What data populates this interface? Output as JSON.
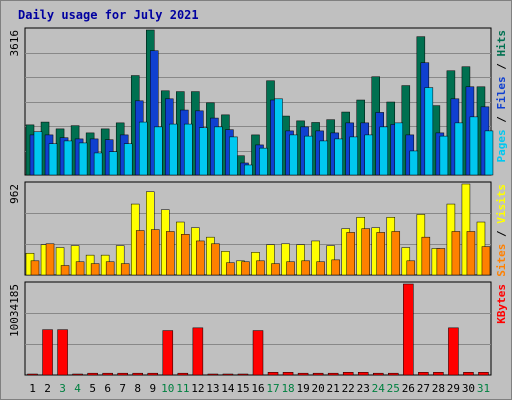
{
  "chart_data": {
    "type": "bar",
    "title": "Daily usage for July 2021",
    "categories": [
      "1",
      "2",
      "3",
      "4",
      "5",
      "6",
      "7",
      "8",
      "9",
      "10",
      "11",
      "12",
      "13",
      "14",
      "15",
      "16",
      "17",
      "18",
      "19",
      "20",
      "21",
      "22",
      "23",
      "24",
      "25",
      "26",
      "27",
      "28",
      "29",
      "30",
      "31"
    ],
    "weekend_days": [
      "3",
      "4",
      "10",
      "11",
      "17",
      "18",
      "24",
      "25",
      "31"
    ],
    "colors": {
      "background": "#c0c0c0",
      "title": "#0000a0",
      "hits": "#007050",
      "files": "#1040d0",
      "pages": "#00c8f0",
      "visits": "#ffff00",
      "sites": "#ff8000",
      "kbytes": "#ff0000",
      "weekday_label": "#000000",
      "weekend_label": "#008040"
    },
    "panels": [
      {
        "name": "hits-files-pages",
        "ytick": "3616",
        "ymax": 3616,
        "legend": [
          {
            "text": "Hits",
            "color": "#007050"
          },
          {
            "text": "Files",
            "color": "#1040d0"
          },
          {
            "text": "Pages",
            "color": "#00c8f0"
          }
        ],
        "series": [
          {
            "name": "Hits",
            "values": [
              1250,
              1320,
              1150,
              1230,
              1050,
              1150,
              1300,
              2480,
              3616,
              2100,
              2080,
              2080,
              1800,
              1500,
              480,
              1000,
              2350,
              1470,
              1350,
              1310,
              1380,
              1570,
              1870,
              2450,
              1820,
              2230,
              3450,
              1730,
              2600,
              2700,
              2200
            ]
          },
          {
            "name": "Files",
            "values": [
              1000,
              1000,
              930,
              900,
              900,
              880,
              1000,
              1850,
              3100,
              1900,
              1620,
              1600,
              1420,
              1130,
              300,
              750,
              1870,
              1100,
              1200,
              1100,
              1050,
              1300,
              1300,
              1560,
              1260,
              1000,
              2800,
              1050,
              1900,
              2200,
              1700
            ]
          },
          {
            "name": "Pages",
            "values": [
              1080,
              780,
              850,
              800,
              550,
              580,
              780,
              1320,
              1200,
              1270,
              1270,
              1180,
              1200,
              950,
              250,
              670,
              1900,
              1000,
              970,
              850,
              900,
              950,
              1000,
              1200,
              1300,
              600,
              2180,
              970,
              1300,
              1450,
              1100
            ]
          }
        ]
      },
      {
        "name": "visits-sites",
        "ytick": "962",
        "ymax": 962,
        "legend": [
          {
            "text": "Visits",
            "color": "#ffff00"
          },
          {
            "text": "Sites",
            "color": "#ff8000"
          }
        ],
        "series": [
          {
            "name": "Visits",
            "values": [
              230,
              320,
              290,
              310,
              210,
              210,
              310,
              750,
              880,
              690,
              560,
              500,
              400,
              250,
              150,
              240,
              320,
              330,
              320,
              360,
              310,
              490,
              610,
              500,
              610,
              290,
              640,
              280,
              750,
              962,
              560
            ]
          },
          {
            "name": "Sites",
            "values": [
              150,
              330,
              100,
              140,
              120,
              140,
              120,
              470,
              480,
              460,
              430,
              360,
              330,
              130,
              140,
              150,
              120,
              140,
              150,
              140,
              160,
              450,
              490,
              450,
              460,
              150,
              400,
              280,
              460,
              460,
              300
            ]
          }
        ]
      },
      {
        "name": "kbytes",
        "ytick": "10034185",
        "ymax": 10034185,
        "legend": [
          {
            "text": "KBytes",
            "color": "#ff0000"
          }
        ],
        "series": [
          {
            "name": "KBytes",
            "values": [
              100000,
              5000000,
              5000000,
              100000,
              200000,
              200000,
              200000,
              200000,
              200000,
              4900000,
              200000,
              5200000,
              100000,
              100000,
              100000,
              4900000,
              300000,
              300000,
              200000,
              200000,
              200000,
              300000,
              300000,
              200000,
              200000,
              10034185,
              300000,
              300000,
              5200000,
              300000,
              300000
            ]
          }
        ]
      }
    ]
  }
}
